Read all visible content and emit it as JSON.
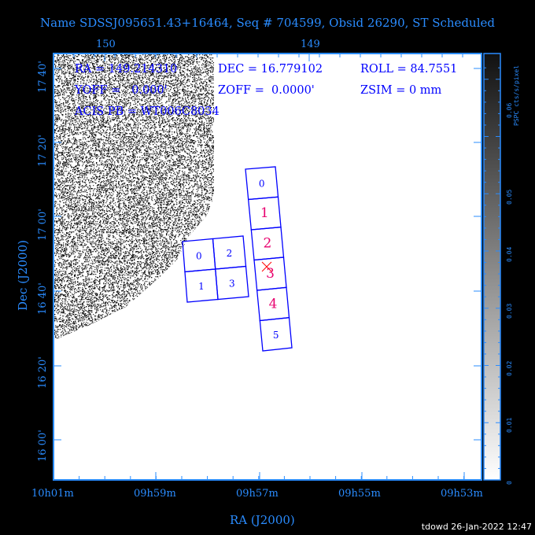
{
  "title": "Name SDSSJ095651.43+16464, Seq # 704599, Obsid 26290, ST Scheduled",
  "info": {
    "ra": "RA = 149.214310",
    "dec": "DEC = 16.779102",
    "roll": "ROLL = 84.7551",
    "yoff": "YOFF =   0.000'",
    "zoff": "ZOFF =  0.0000'",
    "zsim": "ZSIM = 0 mm",
    "acis_pb": "ACIS PB = WT006C8034"
  },
  "axes": {
    "xlabel": "RA (J2000)",
    "ylabel": "Dec (J2000)",
    "x_ticks": [
      "10h01m",
      "09h59m",
      "09h57m",
      "09h55m",
      "09h53m"
    ],
    "top_ticks": [
      "150",
      "149"
    ],
    "y_ticks": [
      "17 40'",
      "17 20'",
      "17 00'",
      "16 40'",
      "16 20'",
      "16 00'"
    ]
  },
  "colorbar": {
    "label": "PSPC cts/s/pixel",
    "ticks": [
      "0",
      "0.01",
      "0.02",
      "0.03",
      "0.04",
      "0.05",
      "0.06"
    ]
  },
  "acis_i": {
    "chips": [
      "0",
      "1",
      "2",
      "3"
    ]
  },
  "acis_s": {
    "chips": [
      "0",
      "1",
      "2",
      "3",
      "4",
      "5"
    ],
    "active": [
      "1",
      "2",
      "3",
      "4"
    ]
  },
  "colors": {
    "chip_outline": "#0000ff",
    "active_chip_label": "#e8006e",
    "axis": "#2a8cff",
    "aimpoint": "#ff0000"
  },
  "footer": "tdowd 26-Jan-2022 12:47"
}
